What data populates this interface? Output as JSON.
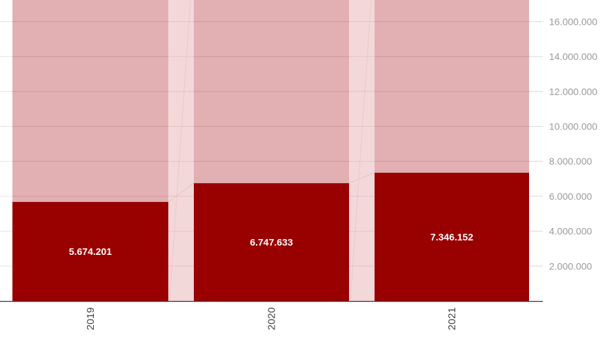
{
  "chart_data": {
    "type": "bar",
    "subtype": "stacked-bar-with-connectors",
    "title": "",
    "xlabel": "",
    "ylabel": "",
    "categories": [
      "2019",
      "2020",
      "2021"
    ],
    "series": [
      {
        "name": "value",
        "values": [
          5674201,
          6747633,
          7346152
        ],
        "color": "#990000"
      },
      {
        "name": "remainder-background",
        "values": [
          11325799,
          10252367,
          9653848
        ],
        "color": "#e2b0b3"
      }
    ],
    "data_labels": [
      "5.674.201",
      "6.747.633",
      "7.346.152"
    ],
    "yticks": [
      2000000,
      4000000,
      6000000,
      8000000,
      10000000,
      12000000,
      14000000,
      16000000
    ],
    "ytick_labels": [
      "2.000.000",
      "4.000.000",
      "6.000.000",
      "8.000.000",
      "10.000.000",
      "12.000.000",
      "14.000.000",
      "16.000.000"
    ],
    "ylim": [
      0,
      17100000
    ],
    "y_axis_position": "right",
    "xtick_rotation": -90,
    "grid": true,
    "legend": "none",
    "connector_color": "#f3d8da"
  }
}
